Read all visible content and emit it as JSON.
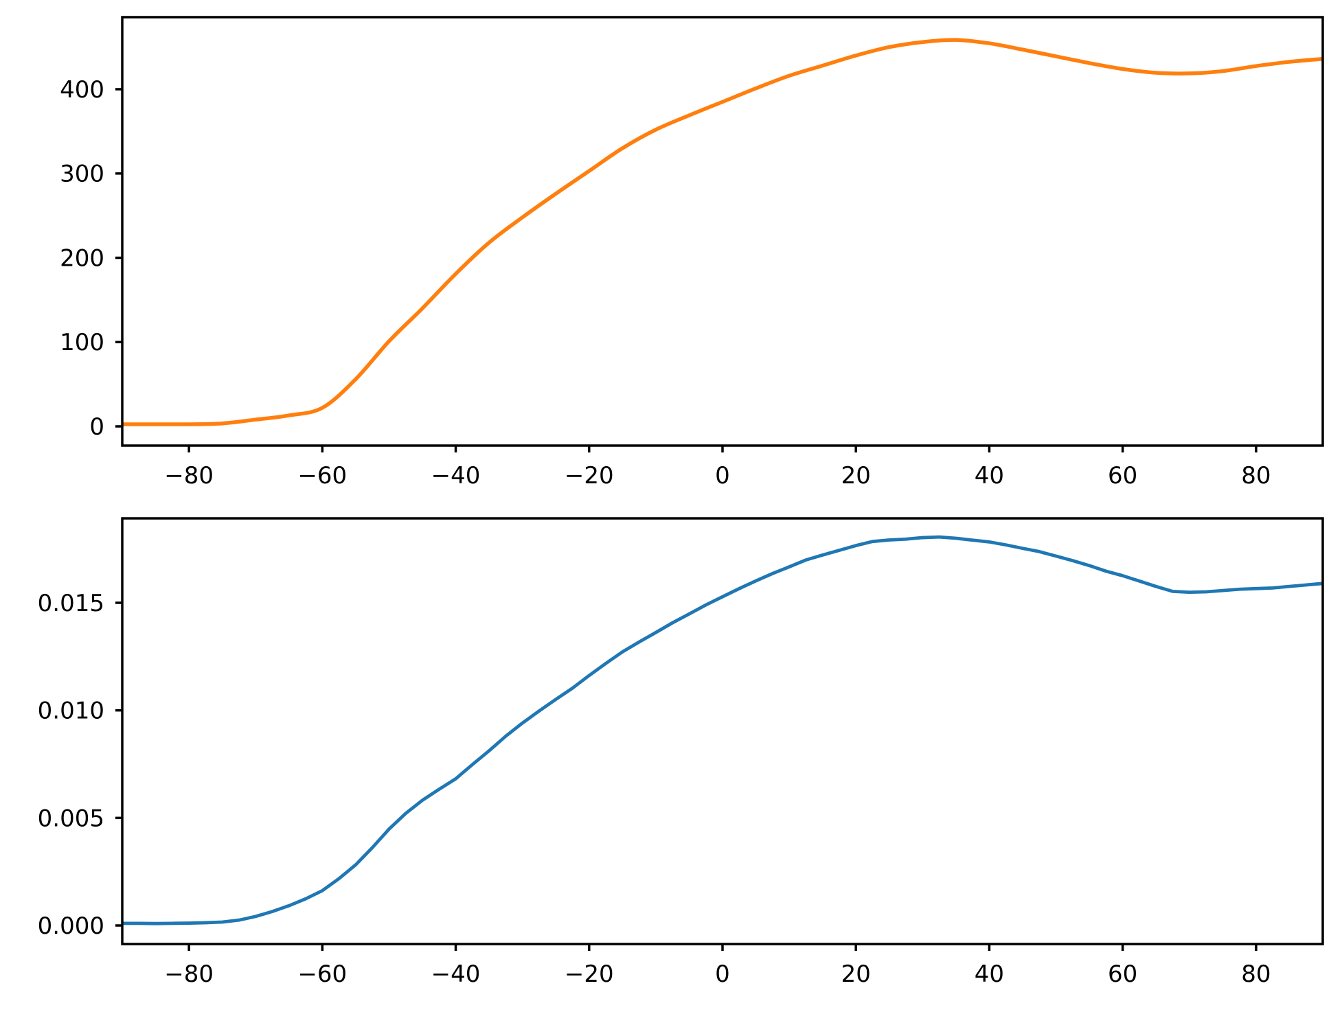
{
  "figure": {
    "background": "#ffffff",
    "spine_color": "#000000",
    "tick_color": "#000000"
  },
  "chart_data": [
    {
      "type": "line",
      "title": "",
      "xlabel": "",
      "ylabel": "",
      "grid": false,
      "legend": null,
      "xlim": [
        -90,
        90
      ],
      "ylim": [
        -22.8,
        485.5
      ],
      "xticks": [
        -80,
        -60,
        -40,
        -20,
        0,
        20,
        40,
        60,
        80
      ],
      "xtick_labels": [
        "−80",
        "−60",
        "−40",
        "−20",
        "0",
        "20",
        "40",
        "60",
        "80"
      ],
      "yticks": [
        0,
        100,
        200,
        300,
        400
      ],
      "ytick_labels": [
        "0",
        "100",
        "200",
        "300",
        "400"
      ],
      "series": [
        {
          "name": "orange-curve",
          "color": "#ff7f0e",
          "linewidth": 5.5,
          "smooth": true,
          "x": [
            -90,
            -85,
            -80,
            -75,
            -70,
            -65,
            -60,
            -55,
            -50,
            -45,
            -40,
            -35,
            -30,
            -25,
            -20,
            -15,
            -10,
            -5,
            0,
            5,
            10,
            15,
            20,
            25,
            30,
            35,
            40,
            45,
            50,
            55,
            60,
            65,
            70,
            75,
            80,
            85,
            90
          ],
          "y": [
            2.5,
            2.5,
            2.5,
            3.5,
            8,
            13,
            22,
            56,
            101,
            140,
            181,
            218,
            248,
            276,
            303,
            330,
            352,
            369,
            385,
            401,
            416,
            428,
            440,
            450,
            456,
            458.5,
            454.5,
            447,
            439,
            431,
            424,
            419.5,
            418.8,
            421.5,
            427.5,
            432.5,
            436
          ]
        }
      ]
    },
    {
      "type": "line",
      "title": "",
      "xlabel": "",
      "ylabel": "",
      "grid": false,
      "legend": null,
      "xlim": [
        -90,
        90
      ],
      "ylim": [
        -0.000862,
        0.018925
      ],
      "xticks": [
        -80,
        -60,
        -40,
        -20,
        0,
        20,
        40,
        60,
        80
      ],
      "xtick_labels": [
        "−80",
        "−60",
        "−40",
        "−20",
        "0",
        "20",
        "40",
        "60",
        "80"
      ],
      "yticks": [
        0.0,
        0.005,
        0.01,
        0.015
      ],
      "ytick_labels": [
        "0.000",
        "0.005",
        "0.010",
        "0.015"
      ],
      "series": [
        {
          "name": "blue-curve",
          "color": "#1f77b4",
          "linewidth": 4.8,
          "smooth": false,
          "x": [
            -90,
            -87.5,
            -85,
            -82.5,
            -80,
            -77.5,
            -75,
            -72.5,
            -70,
            -67.5,
            -65,
            -62.5,
            -60,
            -57.5,
            -55,
            -52.5,
            -50,
            -47.5,
            -45,
            -42.5,
            -40,
            -37.5,
            -35,
            -32.5,
            -30,
            -27.5,
            -25,
            -22.5,
            -20,
            -17.5,
            -15,
            -12.5,
            -10,
            -7.5,
            -5,
            -2.5,
            0,
            2.5,
            5,
            7.5,
            10,
            12.5,
            15,
            17.5,
            20,
            22.5,
            25,
            27.5,
            30,
            32.5,
            35,
            37.5,
            40,
            42.5,
            45,
            47.5,
            50,
            52.5,
            55,
            57.5,
            60,
            62.5,
            65,
            67.5,
            70,
            72.5,
            75,
            77.5,
            80,
            82.5,
            85,
            87.5,
            90
          ],
          "y": [
            0.0001,
            0.0001,
            9e-05,
            0.0001,
            0.00011,
            0.00013,
            0.00016,
            0.00025,
            0.00042,
            0.00065,
            0.00092,
            0.00124,
            0.00162,
            0.00218,
            0.00282,
            0.00362,
            0.00448,
            0.00521,
            0.00582,
            0.00633,
            0.00682,
            0.00748,
            0.00812,
            0.0088,
            0.00941,
            0.00997,
            0.01051,
            0.01103,
            0.01162,
            0.01218,
            0.01272,
            0.01318,
            0.01362,
            0.01407,
            0.01448,
            0.0149,
            0.01528,
            0.01566,
            0.01602,
            0.01636,
            0.01667,
            0.01699,
            0.01722,
            0.01744,
            0.01766,
            0.01785,
            0.01792,
            0.01796,
            0.01803,
            0.01806,
            0.018,
            0.01791,
            0.01783,
            0.01769,
            0.01753,
            0.01738,
            0.01717,
            0.01696,
            0.01673,
            0.01647,
            0.01626,
            0.01601,
            0.01576,
            0.01553,
            0.01549,
            0.01551,
            0.01557,
            0.01563,
            0.01566,
            0.01569,
            0.01576,
            0.01583,
            0.0159
          ]
        }
      ]
    }
  ]
}
